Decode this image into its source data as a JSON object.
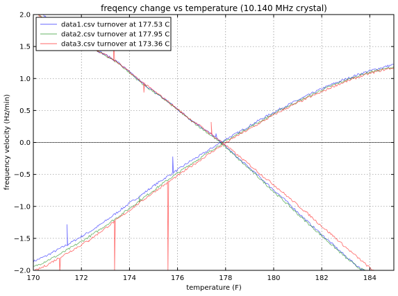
{
  "chart_data": {
    "type": "line",
    "title": "freqency change vs temperature (10.140 MHz crystal)",
    "xlabel": "temperature (F)",
    "ylabel": "frequency velocity (Hz/min)",
    "xlim": [
      170,
      185
    ],
    "ylim": [
      -2.0,
      2.0
    ],
    "xticks": [
      170,
      172,
      174,
      176,
      178,
      180,
      182,
      184
    ],
    "xtick_labels": [
      "170",
      "172",
      "174",
      "176",
      "178",
      "180",
      "182",
      "184"
    ],
    "yticks": [
      -2.0,
      -1.5,
      -1.0,
      -0.5,
      0.0,
      0.5,
      1.0,
      1.5,
      2.0
    ],
    "ytick_labels": [
      "−2.0",
      "−1.5",
      "−1.0",
      "−0.5",
      "0.0",
      "0.5",
      "1.0",
      "1.5",
      "2.0"
    ],
    "grid": true,
    "zero_line": 0.0,
    "legend_position": "top-left",
    "series": [
      {
        "name": "data1.csv turnover at 177.53 C",
        "color": "#0000ff",
        "rising": [
          [
            170.0,
            -1.86
          ],
          [
            170.5,
            -1.78
          ],
          [
            171.0,
            -1.68
          ],
          [
            171.5,
            -1.58
          ],
          [
            172.0,
            -1.47
          ],
          [
            172.5,
            -1.36
          ],
          [
            173.0,
            -1.23
          ],
          [
            173.5,
            -1.09
          ],
          [
            174.0,
            -0.95
          ],
          [
            174.5,
            -0.82
          ],
          [
            175.0,
            -0.68
          ],
          [
            175.5,
            -0.55
          ],
          [
            176.0,
            -0.43
          ],
          [
            176.5,
            -0.3
          ],
          [
            177.0,
            -0.19
          ],
          [
            177.5,
            -0.07
          ],
          [
            178.0,
            0.05
          ],
          [
            178.5,
            0.15
          ],
          [
            179.0,
            0.26
          ],
          [
            179.5,
            0.37
          ],
          [
            180.0,
            0.47
          ],
          [
            180.5,
            0.57
          ],
          [
            181.0,
            0.66
          ],
          [
            181.5,
            0.75
          ],
          [
            182.0,
            0.84
          ],
          [
            182.5,
            0.92
          ],
          [
            183.0,
            0.99
          ],
          [
            183.5,
            1.06
          ],
          [
            184.0,
            1.12
          ],
          [
            184.5,
            1.17
          ],
          [
            185.0,
            1.22
          ]
        ],
        "falling": [
          [
            170.0,
            2.1
          ],
          [
            170.5,
            1.97
          ],
          [
            171.0,
            1.82
          ],
          [
            171.5,
            1.69
          ],
          [
            172.0,
            1.57
          ],
          [
            172.5,
            1.47
          ],
          [
            173.0,
            1.37
          ],
          [
            173.5,
            1.26
          ],
          [
            174.0,
            1.1
          ],
          [
            174.5,
            0.94
          ],
          [
            175.0,
            0.8
          ],
          [
            175.5,
            0.67
          ],
          [
            176.0,
            0.52
          ],
          [
            176.5,
            0.37
          ],
          [
            177.0,
            0.24
          ],
          [
            177.5,
            0.1
          ],
          [
            178.0,
            -0.06
          ],
          [
            178.5,
            -0.24
          ],
          [
            179.0,
            -0.4
          ],
          [
            179.5,
            -0.57
          ],
          [
            180.0,
            -0.74
          ],
          [
            180.5,
            -0.91
          ],
          [
            181.0,
            -1.09
          ],
          [
            181.5,
            -1.27
          ],
          [
            182.0,
            -1.44
          ],
          [
            182.5,
            -1.61
          ],
          [
            183.0,
            -1.78
          ],
          [
            183.5,
            -1.94
          ],
          [
            184.0,
            -2.05
          ]
        ],
        "spikes": [
          [
            171.4,
            -1.28
          ],
          [
            175.8,
            -0.22
          ],
          [
            177.6,
            0.14
          ]
        ]
      },
      {
        "name": "data2.csv turnover at 177.95 C",
        "color": "#008000",
        "rising": [
          [
            170.0,
            -1.95
          ],
          [
            170.5,
            -1.86
          ],
          [
            171.0,
            -1.77
          ],
          [
            171.5,
            -1.66
          ],
          [
            172.0,
            -1.55
          ],
          [
            172.5,
            -1.43
          ],
          [
            173.0,
            -1.3
          ],
          [
            173.5,
            -1.17
          ],
          [
            174.0,
            -1.03
          ],
          [
            174.5,
            -0.89
          ],
          [
            175.0,
            -0.75
          ],
          [
            175.5,
            -0.61
          ],
          [
            176.0,
            -0.48
          ],
          [
            176.5,
            -0.35
          ],
          [
            177.0,
            -0.23
          ],
          [
            177.5,
            -0.1
          ],
          [
            178.0,
            0.02
          ],
          [
            178.5,
            0.13
          ],
          [
            179.0,
            0.24
          ],
          [
            179.5,
            0.34
          ],
          [
            180.0,
            0.45
          ],
          [
            180.5,
            0.55
          ],
          [
            181.0,
            0.64
          ],
          [
            181.5,
            0.73
          ],
          [
            182.0,
            0.82
          ],
          [
            182.5,
            0.9
          ],
          [
            183.0,
            0.97
          ],
          [
            183.5,
            1.04
          ],
          [
            184.0,
            1.1
          ],
          [
            184.5,
            1.14
          ],
          [
            185.0,
            1.18
          ]
        ],
        "falling": [
          [
            170.0,
            2.05
          ],
          [
            170.5,
            1.92
          ],
          [
            171.0,
            1.79
          ],
          [
            171.5,
            1.67
          ],
          [
            172.0,
            1.56
          ],
          [
            172.5,
            1.46
          ],
          [
            173.0,
            1.36
          ],
          [
            173.5,
            1.25
          ],
          [
            174.0,
            1.09
          ],
          [
            174.5,
            0.93
          ],
          [
            175.0,
            0.79
          ],
          [
            175.5,
            0.66
          ],
          [
            176.0,
            0.51
          ],
          [
            176.5,
            0.36
          ],
          [
            177.0,
            0.22
          ],
          [
            177.5,
            0.08
          ],
          [
            178.0,
            -0.07
          ],
          [
            178.5,
            -0.25
          ],
          [
            179.0,
            -0.42
          ],
          [
            179.5,
            -0.59
          ],
          [
            180.0,
            -0.77
          ],
          [
            180.5,
            -0.94
          ],
          [
            181.0,
            -1.12
          ],
          [
            181.5,
            -1.29
          ],
          [
            182.0,
            -1.46
          ],
          [
            182.5,
            -1.63
          ],
          [
            183.0,
            -1.8
          ],
          [
            183.5,
            -1.95
          ],
          [
            184.0,
            -2.05
          ]
        ],
        "spikes": [
          [
            174.4,
            -0.85
          ],
          [
            176.4,
            -0.38
          ]
        ]
      },
      {
        "name": "data3.csv turnover at 173.36 C",
        "color": "#ff0000",
        "rising": [
          [
            170.0,
            -2.02
          ],
          [
            170.5,
            -1.93
          ],
          [
            171.0,
            -1.82
          ],
          [
            171.5,
            -1.71
          ],
          [
            172.0,
            -1.6
          ],
          [
            172.5,
            -1.48
          ],
          [
            173.0,
            -1.34
          ],
          [
            173.5,
            -1.2
          ],
          [
            174.0,
            -1.06
          ],
          [
            174.5,
            -0.92
          ],
          [
            175.0,
            -0.78
          ],
          [
            175.5,
            -0.65
          ],
          [
            176.0,
            -0.52
          ],
          [
            176.5,
            -0.39
          ],
          [
            177.0,
            -0.26
          ],
          [
            177.5,
            -0.13
          ],
          [
            178.0,
            -0.01
          ],
          [
            178.5,
            0.11
          ],
          [
            179.0,
            0.21
          ],
          [
            179.5,
            0.32
          ],
          [
            180.0,
            0.43
          ],
          [
            180.5,
            0.53
          ],
          [
            181.0,
            0.62
          ],
          [
            181.5,
            0.71
          ],
          [
            182.0,
            0.79
          ],
          [
            182.5,
            0.88
          ],
          [
            183.0,
            0.95
          ],
          [
            183.5,
            1.02
          ],
          [
            184.0,
            1.08
          ],
          [
            184.5,
            1.13
          ],
          [
            185.0,
            1.17
          ]
        ],
        "falling": [
          [
            170.0,
            2.05
          ],
          [
            170.5,
            1.92
          ],
          [
            171.0,
            1.79
          ],
          [
            171.5,
            1.67
          ],
          [
            172.0,
            1.56
          ],
          [
            172.5,
            1.46
          ],
          [
            173.0,
            1.37
          ],
          [
            173.5,
            1.25
          ],
          [
            174.0,
            1.1
          ],
          [
            174.5,
            0.95
          ],
          [
            175.0,
            0.81
          ],
          [
            175.5,
            0.67
          ],
          [
            176.0,
            0.52
          ],
          [
            176.5,
            0.37
          ],
          [
            177.0,
            0.24
          ],
          [
            177.5,
            0.1
          ],
          [
            178.0,
            -0.04
          ],
          [
            178.5,
            -0.2
          ],
          [
            179.0,
            -0.35
          ],
          [
            179.5,
            -0.51
          ],
          [
            180.0,
            -0.66
          ],
          [
            180.5,
            -0.82
          ],
          [
            181.0,
            -0.98
          ],
          [
            181.5,
            -1.14
          ],
          [
            182.0,
            -1.31
          ],
          [
            182.5,
            -1.47
          ],
          [
            183.0,
            -1.64
          ],
          [
            183.5,
            -1.8
          ],
          [
            184.0,
            -1.96
          ],
          [
            184.3,
            -2.05
          ]
        ],
        "spikes": [
          [
            171.1,
            -2.05
          ],
          [
            172.3,
            -1.55
          ],
          [
            173.35,
            1.65
          ],
          [
            173.38,
            -2.05
          ],
          [
            174.6,
            0.78
          ],
          [
            175.6,
            -2.05
          ],
          [
            177.4,
            0.32
          ]
        ]
      }
    ]
  }
}
